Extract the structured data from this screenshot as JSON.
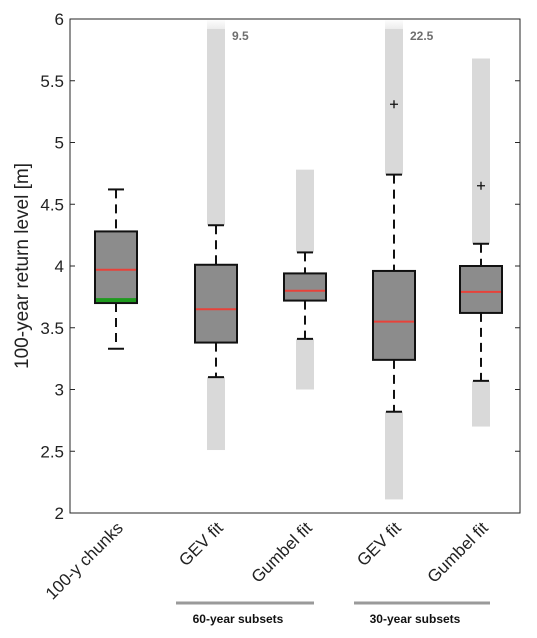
{
  "chart_data": {
    "type": "box",
    "ylabel": "100-year return level [m]",
    "ylim": [
      2,
      6
    ],
    "yticks": [
      2,
      2.5,
      3,
      3.5,
      4,
      4.5,
      5,
      5.5,
      6
    ],
    "ytick_labels": [
      "2",
      "2.5",
      "3",
      "3.5",
      "4",
      "4.5",
      "5",
      "5.5",
      "6"
    ],
    "categories": [
      "100-y chunks",
      "GEV fit",
      "Gumbel fit",
      "GEV fit",
      "Gumbel fit"
    ],
    "boxes": [
      {
        "category": "100-y chunks",
        "whisker_low": 3.33,
        "q1": 3.7,
        "median": 3.97,
        "q3": 4.28,
        "whisker_high": 4.62,
        "outliers": [],
        "range_low": null,
        "range_high": null,
        "overflow_label": "",
        "highlight_low": 3.7,
        "highlight_high": 3.74
      },
      {
        "category": "GEV fit",
        "whisker_low": 3.1,
        "q1": 3.38,
        "median": 3.65,
        "q3": 4.01,
        "whisker_high": 4.33,
        "outliers": [],
        "range_low": 2.51,
        "range_high": 6.0,
        "overflow_label": "9.5"
      },
      {
        "category": "Gumbel fit",
        "whisker_low": 3.41,
        "q1": 3.72,
        "median": 3.8,
        "q3": 3.94,
        "whisker_high": 4.11,
        "outliers": [],
        "range_low": 3.0,
        "range_high": 4.78,
        "overflow_label": ""
      },
      {
        "category": "GEV fit",
        "whisker_low": 2.82,
        "q1": 3.24,
        "median": 3.55,
        "q3": 3.96,
        "whisker_high": 4.74,
        "outliers": [
          5.31
        ],
        "range_low": 2.11,
        "range_high": 6.0,
        "overflow_label": "22.5"
      },
      {
        "category": "Gumbel fit",
        "whisker_low": 3.07,
        "q1": 3.62,
        "median": 3.79,
        "q3": 4.0,
        "whisker_high": 4.18,
        "outliers": [
          4.65
        ],
        "range_low": 2.7,
        "range_high": 5.68,
        "overflow_label": ""
      }
    ],
    "groups": [
      {
        "label": "60-year subsets",
        "from_index": 1,
        "to_index": 2
      },
      {
        "label": "30-year subsets",
        "from_index": 3,
        "to_index": 4
      }
    ],
    "colors": {
      "box_fill": "#8c8c8c",
      "median": "#e8423a",
      "highlight": "#1e9a1e",
      "range_bar": "#d9d9d9",
      "group_line": "#9a9a9a"
    },
    "grid": false
  }
}
